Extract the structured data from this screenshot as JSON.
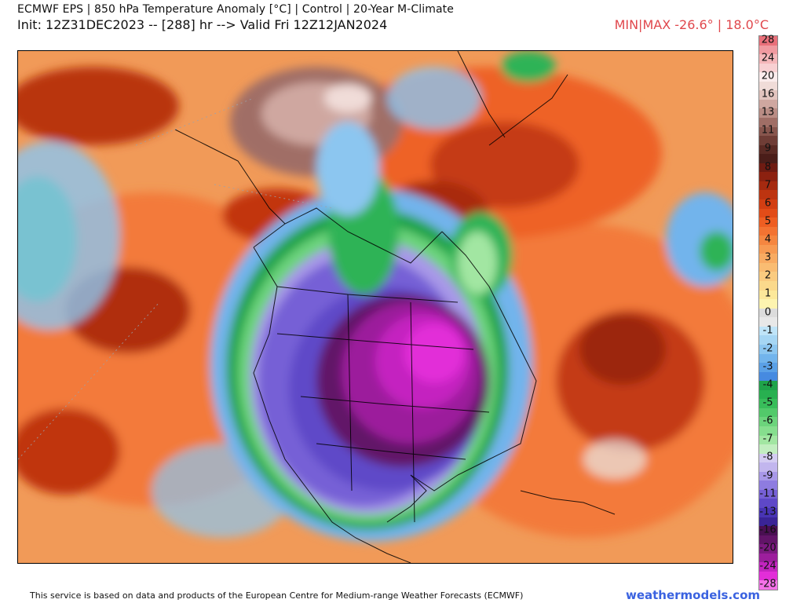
{
  "header": {
    "title": "ECMWF EPS | 850 hPa Temperature Anomaly [°C] | Control | 20-Year M-Climate",
    "init_valid": "Init: 12Z31DEC2023 -- [288] hr --> Valid Fri 12Z12JAN2024",
    "minmax": "MIN|MAX -26.6° | 18.0°C"
  },
  "legend": {
    "unit": "°C",
    "entries": [
      {
        "label": "28",
        "color": "#e9707a"
      },
      {
        "label": "",
        "color": "#f09aa0"
      },
      {
        "label": "24",
        "color": "#f5b7ba"
      },
      {
        "label": "",
        "color": "#f8d0d2"
      },
      {
        "label": "20",
        "color": "#fbecec"
      },
      {
        "label": "",
        "color": "#f0dcd8"
      },
      {
        "label": "16",
        "color": "#e2c4be"
      },
      {
        "label": "",
        "color": "#cfa7a0"
      },
      {
        "label": "13",
        "color": "#b98c84"
      },
      {
        "label": "",
        "color": "#a06e66"
      },
      {
        "label": "11",
        "color": "#87554d"
      },
      {
        "label": "",
        "color": "#6f3d36"
      },
      {
        "label": "9",
        "color": "#5a2a24"
      },
      {
        "label": "",
        "color": "#4a1d19"
      },
      {
        "label": "8",
        "color": "#6e1b12"
      },
      {
        "label": "",
        "color": "#8c2110"
      },
      {
        "label": "7",
        "color": "#a52a10"
      },
      {
        "label": "",
        "color": "#bd3410"
      },
      {
        "label": "6",
        "color": "#d23e12"
      },
      {
        "label": "",
        "color": "#e24c18"
      },
      {
        "label": "5",
        "color": "#ee5e22"
      },
      {
        "label": "",
        "color": "#f37332"
      },
      {
        "label": "4",
        "color": "#f58640"
      },
      {
        "label": "",
        "color": "#f79a52"
      },
      {
        "label": "3",
        "color": "#f8ab62"
      },
      {
        "label": "",
        "color": "#f9bc72"
      },
      {
        "label": "2",
        "color": "#facb80"
      },
      {
        "label": "",
        "color": "#fbd98c"
      },
      {
        "label": "1",
        "color": "#fce89a"
      },
      {
        "label": "",
        "color": "#fdf4b0"
      },
      {
        "label": "0",
        "color": "#dcdcdc"
      },
      {
        "label": "",
        "color": "#e8e8e8"
      },
      {
        "label": "-1",
        "color": "#bfe4f8"
      },
      {
        "label": "",
        "color": "#a6d6f4"
      },
      {
        "label": "-2",
        "color": "#8cc6f0"
      },
      {
        "label": "",
        "color": "#72b4ec"
      },
      {
        "label": "-3",
        "color": "#5aa0e6"
      },
      {
        "label": "",
        "color": "#468ae0"
      },
      {
        "label": "-4",
        "color": "#1fa34a"
      },
      {
        "label": "",
        "color": "#28b050"
      },
      {
        "label": "-5",
        "color": "#38bd5a"
      },
      {
        "label": "",
        "color": "#52c96a"
      },
      {
        "label": "-6",
        "color": "#6cd47c"
      },
      {
        "label": "",
        "color": "#86de8e"
      },
      {
        "label": "-7",
        "color": "#a2e6a2"
      },
      {
        "label": "",
        "color": "#c2eec0"
      },
      {
        "label": "-8",
        "color": "#d4ccf2"
      },
      {
        "label": "",
        "color": "#c2b6ee"
      },
      {
        "label": "-9",
        "color": "#a898e8"
      },
      {
        "label": "",
        "color": "#8e7ce0"
      },
      {
        "label": "-11",
        "color": "#7660d6"
      },
      {
        "label": "",
        "color": "#5e48c8"
      },
      {
        "label": "-13",
        "color": "#4834b4"
      },
      {
        "label": "",
        "color": "#3a2496"
      },
      {
        "label": "-16",
        "color": "#4a0f52"
      },
      {
        "label": "",
        "color": "#621468"
      },
      {
        "label": "-20",
        "color": "#7c1a80"
      },
      {
        "label": "",
        "color": "#9c1e9c"
      },
      {
        "label": "-24",
        "color": "#c424c0"
      },
      {
        "label": "",
        "color": "#e22ed8"
      },
      {
        "label": "-28",
        "color": "#f472e8"
      }
    ]
  },
  "colors": {
    "warm": "#e8622a",
    "warm_deep": "#b8300f",
    "neutral": "#f3a460",
    "cold_blue": "#5aa0e6",
    "cold_green": "#2fb356",
    "cold_purple": "#7a5fd6",
    "cold_magenta": "#d72fd0"
  },
  "footer": {
    "attribution": "This service is based on data and products of the European Centre for Medium-range Weather Forecasts (ECMWF)",
    "brand": "weathermodels.com"
  }
}
